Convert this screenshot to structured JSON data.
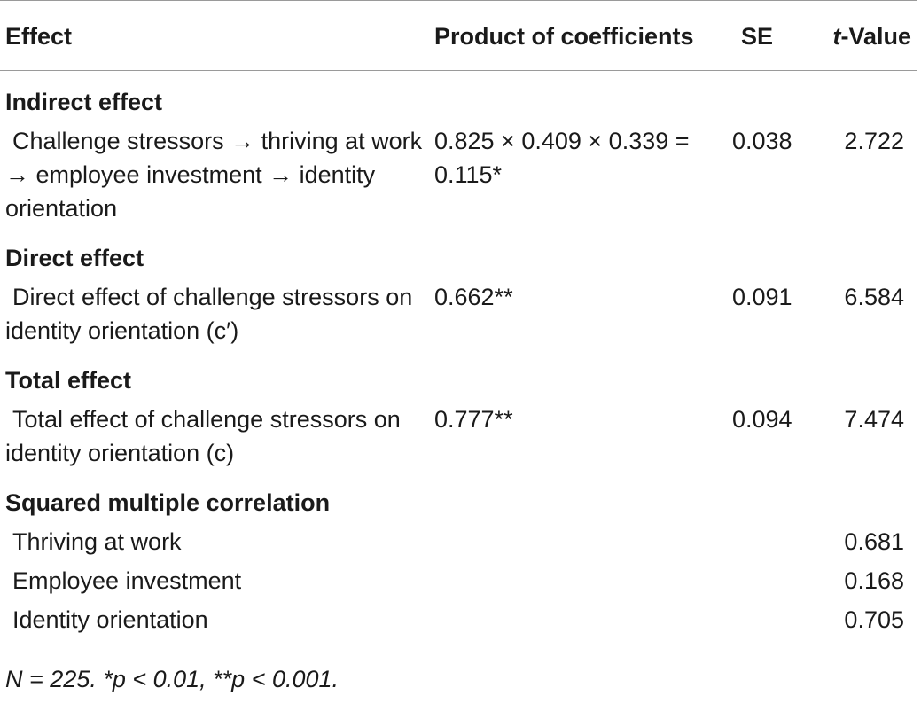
{
  "header": {
    "effect": "Effect",
    "product": "Product of coefficients",
    "se": "SE",
    "t_italic": "t",
    "t_rest": "-Value"
  },
  "sections": [
    {
      "title": "Indirect effect",
      "rows": [
        {
          "label": "Challenge stressors → thriving at work → employee investment → identity orientation",
          "product": "0.825 × 0.409 × 0.339 = 0.115*",
          "se": "0.038",
          "t": "2.722"
        }
      ]
    },
    {
      "title": "Direct effect",
      "rows": [
        {
          "label": "Direct effect of challenge stressors on identity orientation (c′)",
          "product": "0.662**",
          "se": "0.091",
          "t": "6.584"
        }
      ]
    },
    {
      "title": "Total effect",
      "rows": [
        {
          "label": "Total effect of challenge stressors on identity orientation (c)",
          "product": "0.777**",
          "se": "0.094",
          "t": "7.474"
        }
      ]
    },
    {
      "title": "Squared multiple correlation",
      "rows": [
        {
          "label": "Thriving at work",
          "product": "",
          "se": "",
          "t": "0.681"
        },
        {
          "label": "Employee investment",
          "product": "",
          "se": "",
          "t": "0.168"
        },
        {
          "label": "Identity orientation",
          "product": "",
          "se": "",
          "t": "0.705"
        }
      ]
    }
  ],
  "footnote": "N = 225. *p < 0.01, **p < 0.001."
}
